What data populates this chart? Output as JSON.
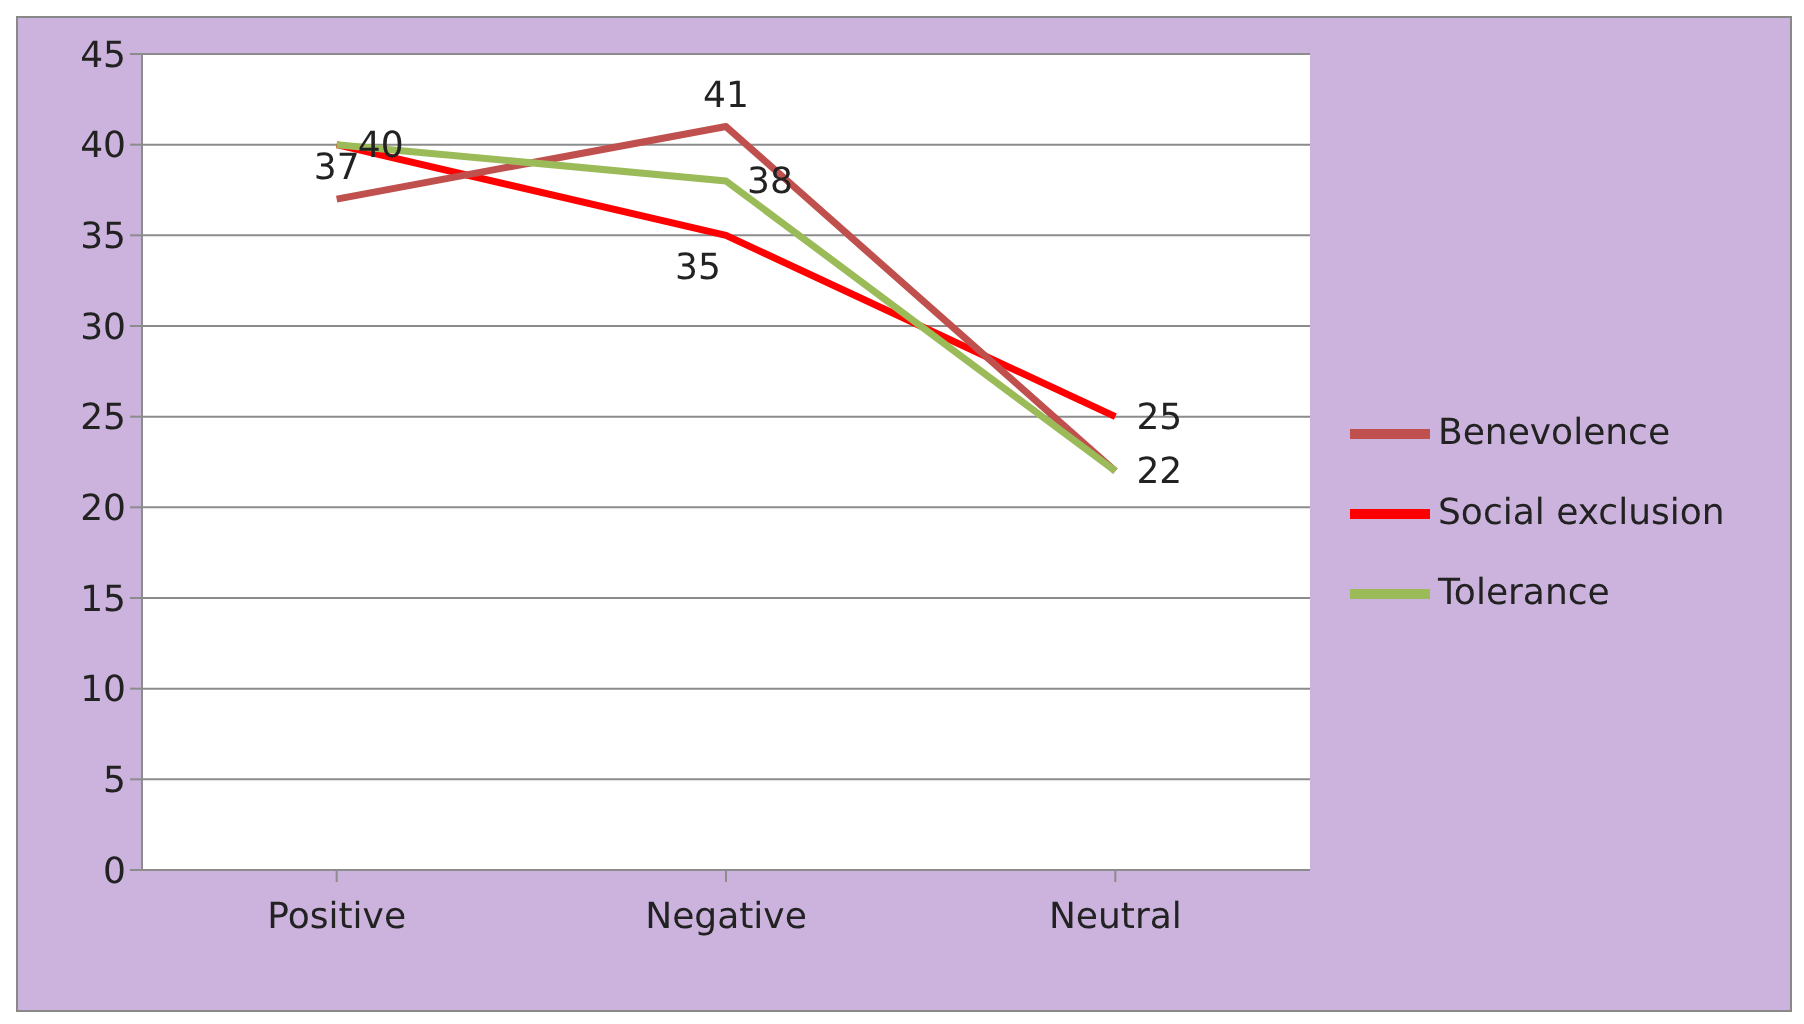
{
  "chart_data": {
    "type": "line",
    "categories": [
      "Positive",
      "Negative",
      "Neutral"
    ],
    "series": [
      {
        "name": "Social exclusion",
        "color": "#ff0000",
        "values": [
          40,
          35,
          25
        ],
        "value_labels": [
          null,
          "35",
          "25"
        ]
      },
      {
        "name": "Benevolence",
        "color": "#c0504d",
        "values": [
          37,
          41,
          22
        ],
        "value_labels": [
          "37",
          "41",
          null
        ]
      },
      {
        "name": "Tolerance",
        "color": "#9bbb59",
        "values": [
          40,
          38,
          22
        ],
        "value_labels": [
          "40",
          "38",
          "22"
        ]
      }
    ],
    "ylim": [
      0,
      45
    ],
    "yticks": [
      0,
      5,
      10,
      15,
      20,
      25,
      30,
      35,
      40,
      45
    ],
    "grid": "y",
    "legend": "right",
    "marker": "none",
    "line_style": "solid"
  }
}
